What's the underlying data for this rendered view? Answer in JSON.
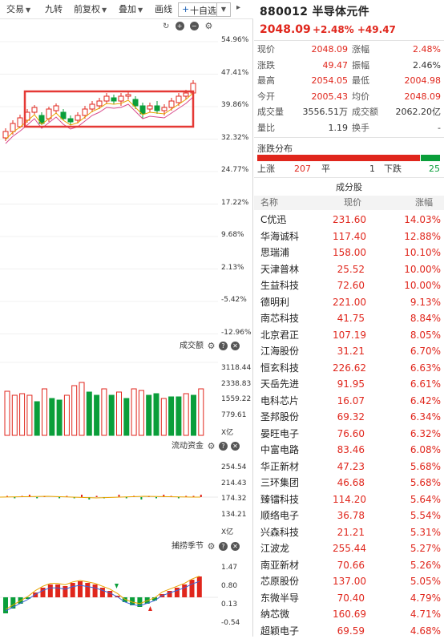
{
  "toolbar": {
    "items": [
      "交易",
      "九转",
      "前复权",
      "叠加",
      "画线"
    ],
    "watchlist_label": "十自选",
    "panel_icons": [
      "refresh-icon",
      "plus-circle-icon",
      "minus-circle-icon",
      "gear-icon"
    ]
  },
  "kline_axis": [
    "54.96%",
    "47.41%",
    "39.86%",
    "32.32%",
    "24.77%",
    "17.22%",
    "9.68%",
    "2.13%",
    "-5.42%",
    "-12.96%"
  ],
  "volume_panel": {
    "title": "成交额",
    "axis": [
      "3118.44",
      "2338.83",
      "1559.22",
      "779.61",
      "X亿"
    ]
  },
  "flow_panel": {
    "title": "流动资金",
    "axis": [
      "254.54",
      "214.43",
      "174.32",
      "134.21",
      "X亿"
    ]
  },
  "macd_panel": {
    "title": "捕捞季节",
    "axis": [
      "1.47",
      "0.80",
      "0.13",
      "-0.54"
    ]
  },
  "quote": {
    "code": "880012",
    "name": "半导体元件",
    "price": "2048.09",
    "change_pct": "+2.48%",
    "change_abs": "+49.47",
    "rows": [
      {
        "l1": "现价",
        "v1": "2048.09",
        "c1": "red",
        "l2": "涨幅",
        "v2": "2.48%",
        "c2": "red"
      },
      {
        "l1": "涨跌",
        "v1": "49.47",
        "c1": "red",
        "l2": "振幅",
        "v2": "2.46%",
        "c2": ""
      },
      {
        "l1": "最高",
        "v1": "2054.05",
        "c1": "red",
        "l2": "最低",
        "v2": "2004.98",
        "c2": "red"
      },
      {
        "l1": "今开",
        "v1": "2005.43",
        "c1": "red",
        "l2": "均价",
        "v2": "2048.09",
        "c2": "red"
      },
      {
        "l1": "成交量",
        "v1": "3556.51万",
        "c1": "",
        "l2": "成交额",
        "v2": "2062.20亿",
        "c2": ""
      },
      {
        "l1": "量比",
        "v1": "1.19",
        "c1": "",
        "l2": "换手",
        "v2": "-",
        "c2": ""
      }
    ]
  },
  "distribution": {
    "title": "涨跌分布",
    "up_label": "上涨",
    "up_count": "207",
    "flat_label": "平",
    "flat_count": "1",
    "down_label": "下跌",
    "down_count": "25"
  },
  "constituents": {
    "title": "成分股",
    "headers": {
      "name": "名称",
      "price": "现价",
      "change": "涨幅"
    },
    "rows": [
      {
        "name": "C优迅",
        "price": "231.60",
        "change": "14.03%"
      },
      {
        "name": "华海诚科",
        "price": "117.40",
        "change": "12.88%"
      },
      {
        "name": "思瑞浦",
        "price": "158.00",
        "change": "10.10%"
      },
      {
        "name": "天津普林",
        "price": "25.52",
        "change": "10.00%"
      },
      {
        "name": "生益科技",
        "price": "72.60",
        "change": "10.00%"
      },
      {
        "name": "德明利",
        "price": "221.00",
        "change": "9.13%"
      },
      {
        "name": "南芯科技",
        "price": "41.75",
        "change": "8.84%"
      },
      {
        "name": "北京君正",
        "price": "107.19",
        "change": "8.05%"
      },
      {
        "name": "江海股份",
        "price": "31.21",
        "change": "6.70%"
      },
      {
        "name": "恒玄科技",
        "price": "226.62",
        "change": "6.63%"
      },
      {
        "name": "天岳先进",
        "price": "91.95",
        "change": "6.61%"
      },
      {
        "name": "电科芯片",
        "price": "16.07",
        "change": "6.42%"
      },
      {
        "name": "圣邦股份",
        "price": "69.32",
        "change": "6.34%"
      },
      {
        "name": "晏旺电子",
        "price": "76.60",
        "change": "6.32%"
      },
      {
        "name": "中富电路",
        "price": "83.46",
        "change": "6.08%"
      },
      {
        "name": "华正新材",
        "price": "47.23",
        "change": "5.68%"
      },
      {
        "name": "三环集团",
        "price": "46.68",
        "change": "5.68%"
      },
      {
        "name": "臻镭科技",
        "price": "114.20",
        "change": "5.64%"
      },
      {
        "name": "顺络电子",
        "price": "36.78",
        "change": "5.54%"
      },
      {
        "name": "兴森科技",
        "price": "21.21",
        "change": "5.31%"
      },
      {
        "name": "江波龙",
        "price": "255.44",
        "change": "5.27%"
      },
      {
        "name": "南亚新材",
        "price": "70.66",
        "change": "5.26%"
      },
      {
        "name": "芯原股份",
        "price": "137.00",
        "change": "5.05%"
      },
      {
        "name": "东微半导",
        "price": "70.40",
        "change": "4.79%"
      },
      {
        "name": "纳芯微",
        "price": "160.69",
        "change": "4.71%"
      },
      {
        "name": "超颖电子",
        "price": "69.59",
        "change": "4.68%"
      }
    ]
  },
  "colors": {
    "up": "#e0261c",
    "down": "#0a9e3a",
    "highlight_box": "#e53935"
  }
}
